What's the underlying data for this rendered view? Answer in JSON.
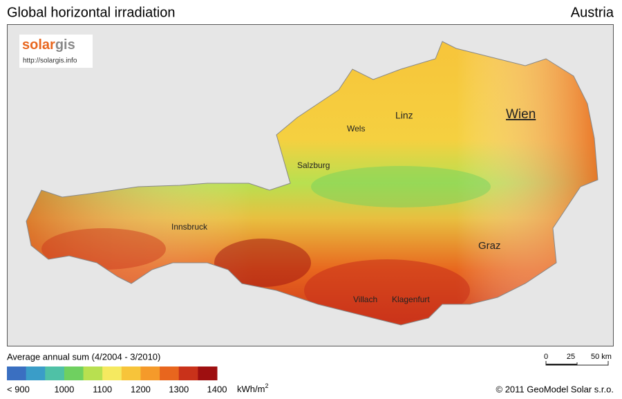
{
  "header": {
    "title": "Global horizontal irradiation",
    "region": "Austria"
  },
  "logo": {
    "brand_1": "solar",
    "brand_2": "gis",
    "url": "http://solargis.info"
  },
  "cities": [
    {
      "label": "Linz"
    },
    {
      "label": "Wels"
    },
    {
      "label": "Wien"
    },
    {
      "label": "Salzburg"
    },
    {
      "label": "Innsbruck"
    },
    {
      "label": "Graz"
    },
    {
      "label": "Villach"
    },
    {
      "label": "Klagenfurt"
    }
  ],
  "legend": {
    "title": "Average annual sum (4/2004 - 3/2010)",
    "colors": [
      "#3a6fc1",
      "#3a9dc8",
      "#4fc1a6",
      "#6fd060",
      "#b8e050",
      "#f5e960",
      "#f7c43a",
      "#f59a2a",
      "#e8661e",
      "#c9321a",
      "#9e0f10"
    ],
    "labels": [
      "< 900",
      "1000",
      "1100",
      "1200",
      "1300",
      "1400"
    ],
    "unit": "kWh/m",
    "unit_sup": "2"
  },
  "scale_bar": {
    "labels": [
      "0",
      "25",
      "50 km"
    ]
  },
  "footer": {
    "copyright": "© 2011 GeoModel Solar s.r.o."
  }
}
